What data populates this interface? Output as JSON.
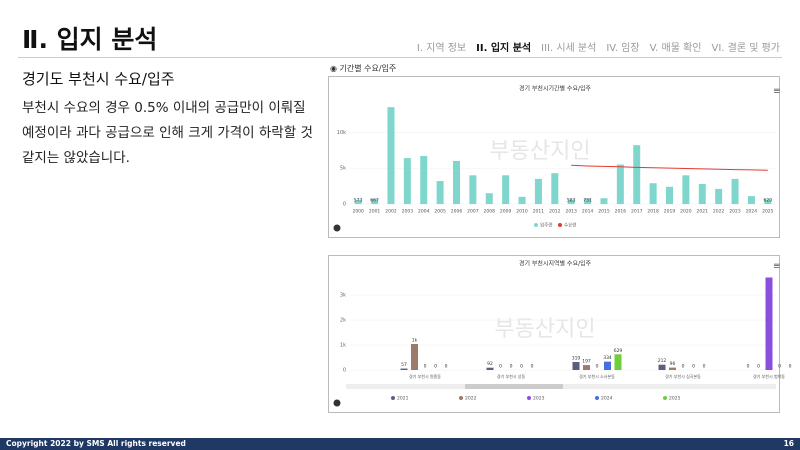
{
  "header": {
    "title": "Ⅱ. 입지 분석",
    "nav": [
      "I. 지역 정보",
      "II. 입지 분석",
      "III. 시세 분석",
      "IV. 임장",
      "V. 매물 확인",
      "VI. 결론 및 평가"
    ]
  },
  "section": {
    "heading": "경기도 부천시 수요/입주",
    "body": "부천시 수요의 경우 0.5% 이내의 공급만이 이뤄질 예정이라 과다 공급으로 인해 크게 가격이 하락할 것 같지는 않았습니다."
  },
  "panel_label": "기간별 수요/입주",
  "watermark": "부동산지인",
  "chart_data": [
    {
      "type": "combo",
      "title": "경기 부천시기간별 수요/입주",
      "categories": [
        "2000",
        "2001",
        "2002",
        "2003",
        "2004",
        "2005",
        "2006",
        "2007",
        "2008",
        "2009",
        "2010",
        "2011",
        "2012",
        "2013",
        "2014",
        "2015",
        "2016",
        "2017",
        "2018",
        "2019",
        "2020",
        "2021",
        "2022",
        "2023",
        "2024",
        "2025"
      ],
      "series": [
        {
          "name": "입주량",
          "color": "#7fd6cc",
          "values": [
            573,
            667,
            13500,
            6400,
            6700,
            3200,
            6000,
            4000,
            1500,
            4000,
            1000,
            3500,
            4300,
            583,
            731,
            800,
            5500,
            8200,
            2900,
            2400,
            4000,
            2800,
            2100,
            3500,
            1100,
            620
          ],
          "value_labels": [
            "573",
            "667",
            null,
            null,
            null,
            null,
            null,
            null,
            null,
            null,
            null,
            null,
            null,
            "583",
            "731",
            null,
            null,
            null,
            null,
            null,
            null,
            null,
            null,
            null,
            null,
            "620"
          ]
        },
        {
          "name": "수요량",
          "color": "#e53935",
          "line": true,
          "values": [
            null,
            null,
            null,
            null,
            null,
            null,
            null,
            null,
            null,
            null,
            null,
            null,
            null,
            5400,
            5300,
            5250,
            5200,
            5100,
            5050,
            5000,
            4950,
            4900,
            4850,
            4800,
            4750,
            4700
          ]
        }
      ],
      "ylim": [
        0,
        14500
      ],
      "yticks": [
        0,
        {
          "value": 5000,
          "label": "5k"
        },
        {
          "value": 10000,
          "label": "10k"
        }
      ]
    },
    {
      "type": "bar",
      "title": "경기 부천시지역별 수요/입주",
      "categories": [
        "경기 부천시 원종동",
        "경기 부천시 상동",
        "경기 부천시 소사본동",
        "경기 부천시 심곡본동",
        "경기 부천시 범박동"
      ],
      "series": [
        {
          "name": "2021",
          "color": "#5a5f7d",
          "values": [
            57,
            92,
            319,
            212,
            0
          ]
        },
        {
          "name": "2022",
          "color": "#9b7b6a",
          "values": [
            1040,
            0,
            197,
            96,
            0
          ],
          "value_labels": [
            "1k",
            "0",
            "197",
            "96",
            "0"
          ]
        },
        {
          "name": "2023",
          "color": "#8a4fdc",
          "values": [
            0,
            0,
            0,
            0,
            3700
          ],
          "value_labels": [
            "0",
            "0",
            "0",
            "0",
            null
          ]
        },
        {
          "name": "2024",
          "color": "#4a6fdc",
          "values": [
            0,
            0,
            334,
            0,
            0
          ]
        },
        {
          "name": "2025",
          "color": "#6fcf3a",
          "values": [
            0,
            0,
            629,
            0,
            0
          ]
        }
      ],
      "ylim": [
        0,
        3900
      ],
      "yticks": [
        0,
        {
          "value": 1000,
          "label": "1k"
        },
        {
          "value": 2000,
          "label": "2k"
        },
        {
          "value": 3000,
          "label": "3k"
        }
      ]
    }
  ],
  "footer": {
    "copyright": "Copyright 2022 by SMS All rights reserved",
    "page": "16"
  }
}
